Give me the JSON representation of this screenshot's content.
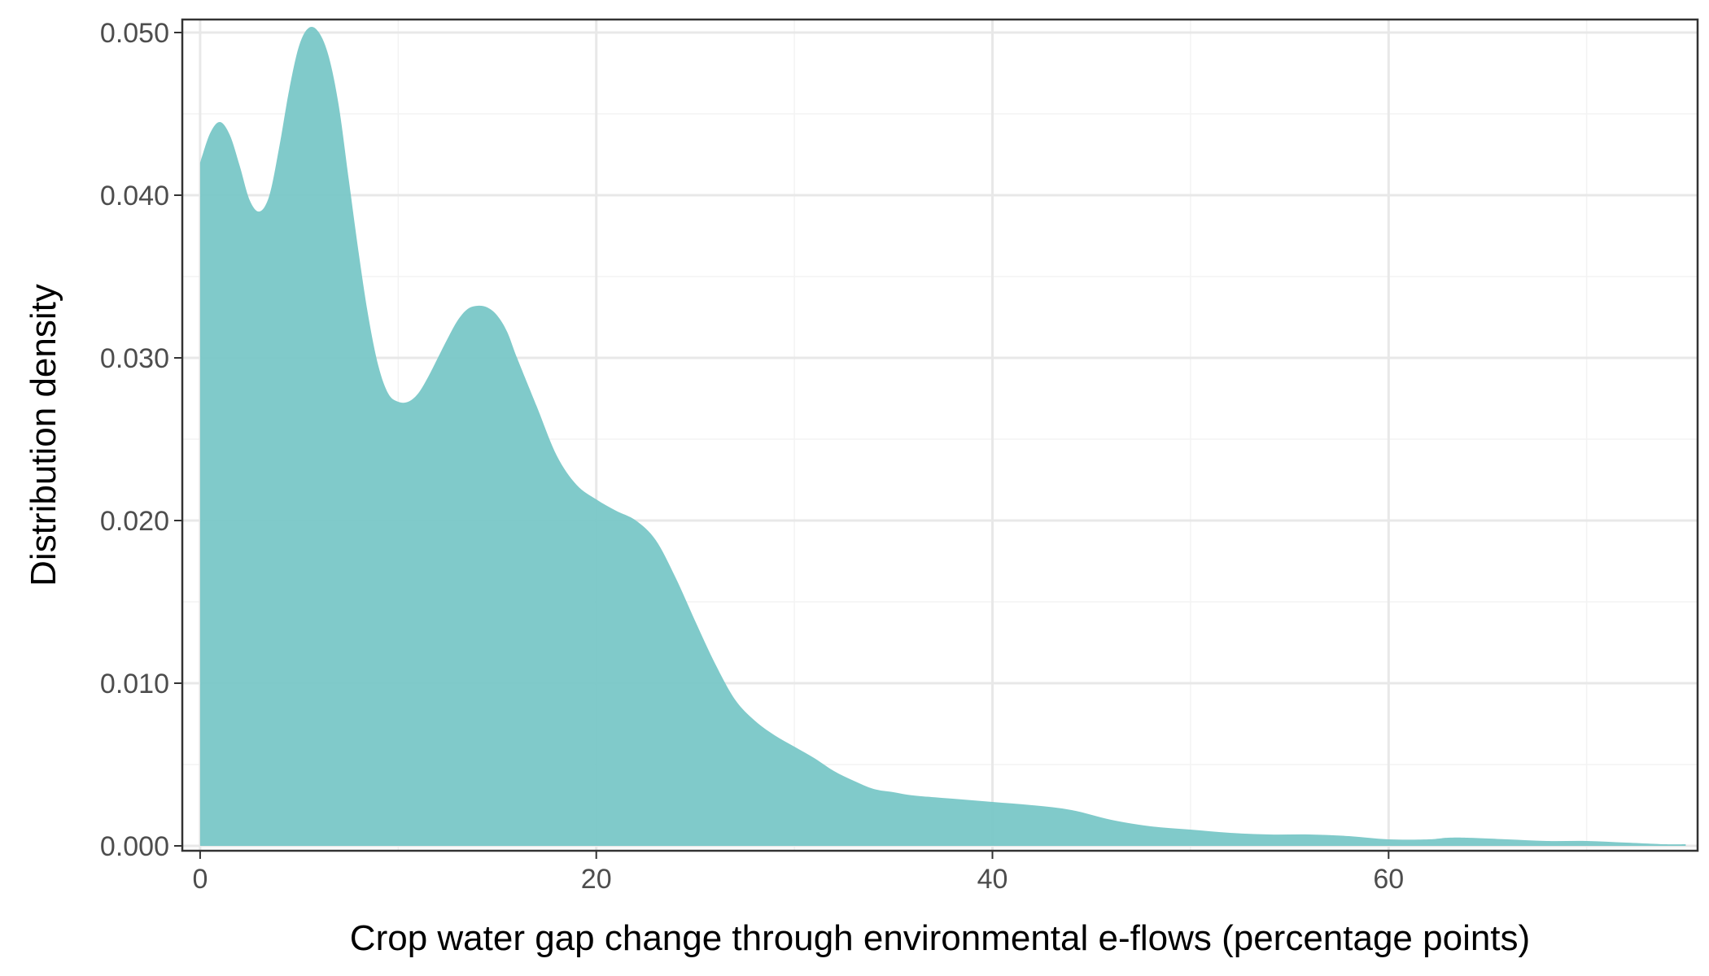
{
  "chart_data": {
    "type": "area",
    "title": "",
    "xlabel": "Crop water gap change through environmental e-flows (percentage points)",
    "ylabel": "Distribution density",
    "xlim": [
      -0.9,
      75.6
    ],
    "ylim": [
      -0.0003,
      0.0508
    ],
    "x_ticks": [
      0,
      20,
      40,
      60
    ],
    "x_tick_labels": [
      "0",
      "20",
      "40",
      "60"
    ],
    "x_minor_ticks": [
      10,
      30,
      50,
      70
    ],
    "y_ticks": [
      0.0,
      0.01,
      0.02,
      0.03,
      0.04,
      0.05
    ],
    "y_tick_labels": [
      "0.000",
      "0.010",
      "0.020",
      "0.030",
      "0.040",
      "0.050"
    ],
    "y_minor_ticks": [
      0.005,
      0.015,
      0.025,
      0.035,
      0.045
    ],
    "grid": true,
    "fill_color": "#79c7c7",
    "fill_opacity": 0.95,
    "series": [
      {
        "x": [
          0,
          0.5,
          1,
          1.5,
          2,
          2.5,
          3,
          3.5,
          4,
          4.5,
          5,
          5.5,
          6,
          6.5,
          7,
          7.5,
          8,
          8.5,
          9,
          9.5,
          10,
          10.5,
          11,
          11.5,
          12,
          12.5,
          13,
          13.5,
          14,
          14.5,
          15,
          15.5,
          16,
          17,
          18,
          19,
          20,
          21,
          22,
          23,
          24,
          25,
          26,
          27,
          28,
          29,
          30,
          31,
          32,
          33,
          34,
          35,
          36,
          38,
          40,
          42,
          44,
          46,
          48,
          50,
          52,
          54,
          56,
          58,
          60,
          62,
          63,
          64,
          66,
          68,
          70,
          72,
          74,
          75
        ],
        "y": [
          0.042,
          0.0438,
          0.0445,
          0.0437,
          0.0418,
          0.0397,
          0.039,
          0.04,
          0.043,
          0.0465,
          0.0492,
          0.0503,
          0.05,
          0.0485,
          0.0455,
          0.041,
          0.0365,
          0.0325,
          0.0295,
          0.0278,
          0.0273,
          0.0273,
          0.0278,
          0.0288,
          0.03,
          0.0312,
          0.0323,
          0.033,
          0.0332,
          0.0331,
          0.0326,
          0.0316,
          0.03,
          0.027,
          0.024,
          0.0222,
          0.0213,
          0.0206,
          0.02,
          0.0188,
          0.0165,
          0.0138,
          0.0112,
          0.009,
          0.0077,
          0.0068,
          0.0061,
          0.0054,
          0.0046,
          0.004,
          0.0035,
          0.0033,
          0.0031,
          0.0029,
          0.0027,
          0.0025,
          0.0022,
          0.0016,
          0.0012,
          0.001,
          0.0008,
          0.0007,
          0.0007,
          0.0006,
          0.0004,
          0.0004,
          0.0005,
          0.0005,
          0.0004,
          0.0003,
          0.0003,
          0.0002,
          0.0001,
          0.0001
        ]
      }
    ]
  }
}
